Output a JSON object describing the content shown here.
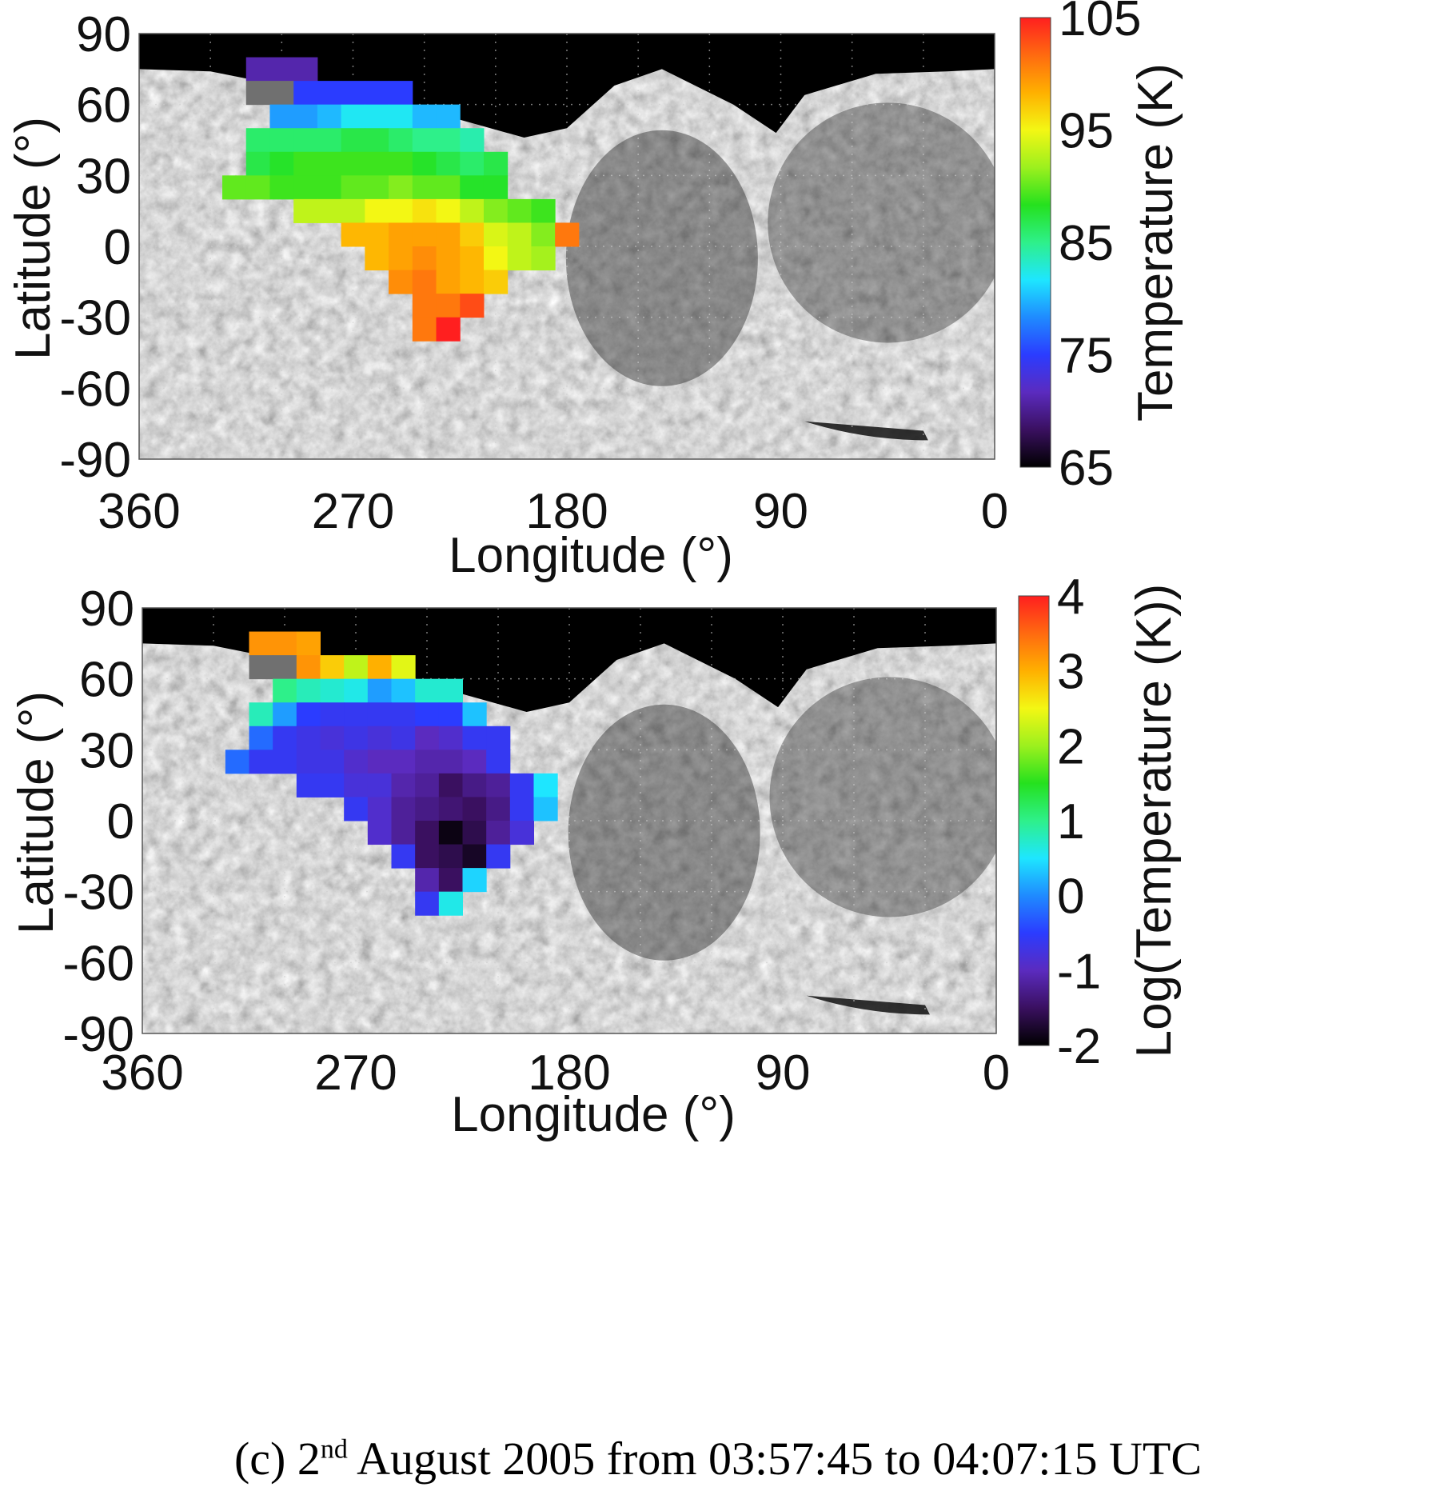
{
  "colorscale": [
    "#000000",
    "#3a1060",
    "#5b2bbf",
    "#2b3cff",
    "#1f8bff",
    "#1ee6ff",
    "#2ef08a",
    "#25e11e",
    "#9cf01e",
    "#f3f714",
    "#ffb000",
    "#ff6a10",
    "#ff1f1f"
  ],
  "chart_data": [
    {
      "type": "heatmap",
      "xlabel": "Longitude (°)",
      "ylabel": "Latitude (°)",
      "colorbar_label": "Temperature (K)",
      "x_ticks": [
        "360",
        "270",
        "180",
        "90",
        "0"
      ],
      "y_ticks": [
        "90",
        "60",
        "30",
        "0",
        "-30",
        "-60",
        "-90"
      ],
      "colorbar_ticks": [
        "105",
        "95",
        "85",
        "75",
        "65"
      ],
      "xlim": [
        360,
        0
      ],
      "ylim": [
        -90,
        90
      ],
      "clim": [
        65,
        105
      ],
      "cell_size_deg": [
        10,
        10
      ],
      "cells": [
        {
          "lon": 310,
          "lat": 75,
          "v": 71
        },
        {
          "lon": 300,
          "lat": 75,
          "v": 71
        },
        {
          "lon": 290,
          "lat": 75,
          "v": 71
        },
        {
          "lon": 310,
          "lat": 65,
          "nodata": true
        },
        {
          "lon": 300,
          "lat": 65,
          "nodata": true
        },
        {
          "lon": 290,
          "lat": 65,
          "v": 75
        },
        {
          "lon": 280,
          "lat": 65,
          "v": 75
        },
        {
          "lon": 270,
          "lat": 65,
          "v": 75
        },
        {
          "lon": 260,
          "lat": 65,
          "v": 75
        },
        {
          "lon": 250,
          "lat": 65,
          "v": 75
        },
        {
          "lon": 300,
          "lat": 55,
          "v": 79
        },
        {
          "lon": 290,
          "lat": 55,
          "v": 79
        },
        {
          "lon": 280,
          "lat": 55,
          "v": 80
        },
        {
          "lon": 270,
          "lat": 55,
          "v": 82
        },
        {
          "lon": 260,
          "lat": 55,
          "v": 82
        },
        {
          "lon": 250,
          "lat": 55,
          "v": 82
        },
        {
          "lon": 240,
          "lat": 55,
          "v": 80
        },
        {
          "lon": 230,
          "lat": 55,
          "v": 80
        },
        {
          "lon": 310,
          "lat": 45,
          "v": 86
        },
        {
          "lon": 300,
          "lat": 45,
          "v": 86
        },
        {
          "lon": 290,
          "lat": 45,
          "v": 86
        },
        {
          "lon": 280,
          "lat": 45,
          "v": 86
        },
        {
          "lon": 270,
          "lat": 45,
          "v": 87
        },
        {
          "lon": 260,
          "lat": 45,
          "v": 87
        },
        {
          "lon": 250,
          "lat": 45,
          "v": 86
        },
        {
          "lon": 240,
          "lat": 45,
          "v": 85
        },
        {
          "lon": 230,
          "lat": 45,
          "v": 85
        },
        {
          "lon": 220,
          "lat": 45,
          "v": 84
        },
        {
          "lon": 310,
          "lat": 35,
          "v": 87
        },
        {
          "lon": 300,
          "lat": 35,
          "v": 88
        },
        {
          "lon": 290,
          "lat": 35,
          "v": 89
        },
        {
          "lon": 280,
          "lat": 35,
          "v": 89
        },
        {
          "lon": 270,
          "lat": 35,
          "v": 89
        },
        {
          "lon": 260,
          "lat": 35,
          "v": 89
        },
        {
          "lon": 250,
          "lat": 35,
          "v": 89
        },
        {
          "lon": 240,
          "lat": 35,
          "v": 88
        },
        {
          "lon": 230,
          "lat": 35,
          "v": 87
        },
        {
          "lon": 220,
          "lat": 35,
          "v": 86
        },
        {
          "lon": 210,
          "lat": 35,
          "v": 87
        },
        {
          "lon": 320,
          "lat": 25,
          "v": 90
        },
        {
          "lon": 310,
          "lat": 25,
          "v": 90
        },
        {
          "lon": 300,
          "lat": 25,
          "v": 89
        },
        {
          "lon": 290,
          "lat": 25,
          "v": 89
        },
        {
          "lon": 280,
          "lat": 25,
          "v": 89
        },
        {
          "lon": 270,
          "lat": 25,
          "v": 90
        },
        {
          "lon": 260,
          "lat": 25,
          "v": 90
        },
        {
          "lon": 250,
          "lat": 25,
          "v": 91
        },
        {
          "lon": 240,
          "lat": 25,
          "v": 90
        },
        {
          "lon": 230,
          "lat": 25,
          "v": 90
        },
        {
          "lon": 220,
          "lat": 25,
          "v": 88
        },
        {
          "lon": 210,
          "lat": 25,
          "v": 88
        },
        {
          "lon": 290,
          "lat": 15,
          "v": 93
        },
        {
          "lon": 280,
          "lat": 15,
          "v": 93
        },
        {
          "lon": 270,
          "lat": 15,
          "v": 93
        },
        {
          "lon": 260,
          "lat": 15,
          "v": 95
        },
        {
          "lon": 250,
          "lat": 15,
          "v": 95
        },
        {
          "lon": 240,
          "lat": 15,
          "v": 96
        },
        {
          "lon": 230,
          "lat": 15,
          "v": 95
        },
        {
          "lon": 220,
          "lat": 15,
          "v": 93
        },
        {
          "lon": 210,
          "lat": 15,
          "v": 91
        },
        {
          "lon": 200,
          "lat": 15,
          "v": 90
        },
        {
          "lon": 190,
          "lat": 15,
          "v": 89
        },
        {
          "lon": 270,
          "lat": 5,
          "v": 98
        },
        {
          "lon": 260,
          "lat": 5,
          "v": 98
        },
        {
          "lon": 250,
          "lat": 5,
          "v": 99
        },
        {
          "lon": 240,
          "lat": 5,
          "v": 99
        },
        {
          "lon": 230,
          "lat": 5,
          "v": 99
        },
        {
          "lon": 220,
          "lat": 5,
          "v": 97
        },
        {
          "lon": 210,
          "lat": 5,
          "v": 94
        },
        {
          "lon": 200,
          "lat": 5,
          "v": 93
        },
        {
          "lon": 190,
          "lat": 5,
          "v": 91
        },
        {
          "lon": 180,
          "lat": 5,
          "v": 101
        },
        {
          "lon": 260,
          "lat": -5,
          "v": 98
        },
        {
          "lon": 250,
          "lat": -5,
          "v": 99
        },
        {
          "lon": 240,
          "lat": -5,
          "v": 100
        },
        {
          "lon": 230,
          "lat": -5,
          "v": 99
        },
        {
          "lon": 220,
          "lat": -5,
          "v": 98
        },
        {
          "lon": 210,
          "lat": -5,
          "v": 95
        },
        {
          "lon": 200,
          "lat": -5,
          "v": 93
        },
        {
          "lon": 190,
          "lat": -5,
          "v": 92
        },
        {
          "lon": 250,
          "lat": -15,
          "v": 100
        },
        {
          "lon": 240,
          "lat": -15,
          "v": 101
        },
        {
          "lon": 230,
          "lat": -15,
          "v": 99
        },
        {
          "lon": 220,
          "lat": -15,
          "v": 98
        },
        {
          "lon": 210,
          "lat": -15,
          "v": 97
        },
        {
          "lon": 240,
          "lat": -25,
          "v": 101
        },
        {
          "lon": 230,
          "lat": -25,
          "v": 101
        },
        {
          "lon": 220,
          "lat": -25,
          "v": 103
        },
        {
          "lon": 240,
          "lat": -35,
          "v": 101
        },
        {
          "lon": 230,
          "lat": -35,
          "v": 105
        }
      ]
    },
    {
      "type": "heatmap",
      "xlabel": "Longitude (°)",
      "ylabel": "Latitude (°)",
      "colorbar_label": "Log(Temperature (K))",
      "x_ticks": [
        "360",
        "270",
        "180",
        "90",
        "0"
      ],
      "y_ticks": [
        "90",
        "60",
        "30",
        "0",
        "-30",
        "-60",
        "-90"
      ],
      "colorbar_ticks": [
        "4",
        "3",
        "2",
        "1",
        "0",
        "-1",
        "-2"
      ],
      "xlim": [
        360,
        0
      ],
      "ylim": [
        -90,
        90
      ],
      "clim": [
        -2,
        4
      ],
      "cell_size_deg": [
        10,
        10
      ],
      "cells": [
        {
          "lon": 310,
          "lat": 75,
          "v": 3.2
        },
        {
          "lon": 300,
          "lat": 75,
          "v": 3.2
        },
        {
          "lon": 290,
          "lat": 75,
          "v": 3.1
        },
        {
          "lon": 310,
          "lat": 65,
          "nodata": true
        },
        {
          "lon": 300,
          "lat": 65,
          "nodata": true
        },
        {
          "lon": 290,
          "lat": 65,
          "v": 3.2
        },
        {
          "lon": 280,
          "lat": 65,
          "v": 2.8
        },
        {
          "lon": 270,
          "lat": 65,
          "v": 2.2
        },
        {
          "lon": 260,
          "lat": 65,
          "v": 3.0
        },
        {
          "lon": 250,
          "lat": 65,
          "v": 2.4
        },
        {
          "lon": 300,
          "lat": 55,
          "v": 1.0
        },
        {
          "lon": 290,
          "lat": 55,
          "v": 0.8
        },
        {
          "lon": 280,
          "lat": 55,
          "v": 0.7
        },
        {
          "lon": 270,
          "lat": 55,
          "v": 0.6
        },
        {
          "lon": 260,
          "lat": 55,
          "v": 0.1
        },
        {
          "lon": 250,
          "lat": 55,
          "v": 0.3
        },
        {
          "lon": 240,
          "lat": 55,
          "v": 0.7
        },
        {
          "lon": 230,
          "lat": 55,
          "v": 0.7
        },
        {
          "lon": 310,
          "lat": 45,
          "v": 0.8
        },
        {
          "lon": 300,
          "lat": 45,
          "v": 0.1
        },
        {
          "lon": 290,
          "lat": 45,
          "v": -0.5
        },
        {
          "lon": 280,
          "lat": 45,
          "v": -0.6
        },
        {
          "lon": 270,
          "lat": 45,
          "v": -0.6
        },
        {
          "lon": 260,
          "lat": 45,
          "v": -0.6
        },
        {
          "lon": 250,
          "lat": 45,
          "v": -0.6
        },
        {
          "lon": 240,
          "lat": 45,
          "v": -0.5
        },
        {
          "lon": 230,
          "lat": 45,
          "v": -0.5
        },
        {
          "lon": 220,
          "lat": 45,
          "v": 0.3
        },
        {
          "lon": 310,
          "lat": 35,
          "v": -0.2
        },
        {
          "lon": 300,
          "lat": 35,
          "v": -0.6
        },
        {
          "lon": 290,
          "lat": 35,
          "v": -0.7
        },
        {
          "lon": 280,
          "lat": 35,
          "v": -0.8
        },
        {
          "lon": 270,
          "lat": 35,
          "v": -0.7
        },
        {
          "lon": 260,
          "lat": 35,
          "v": -0.8
        },
        {
          "lon": 250,
          "lat": 35,
          "v": -0.7
        },
        {
          "lon": 240,
          "lat": 35,
          "v": -1.0
        },
        {
          "lon": 230,
          "lat": 35,
          "v": -0.9
        },
        {
          "lon": 220,
          "lat": 35,
          "v": -0.6
        },
        {
          "lon": 210,
          "lat": 35,
          "v": -0.6
        },
        {
          "lon": 320,
          "lat": 25,
          "v": -0.2
        },
        {
          "lon": 310,
          "lat": 25,
          "v": -0.6
        },
        {
          "lon": 300,
          "lat": 25,
          "v": -0.6
        },
        {
          "lon": 290,
          "lat": 25,
          "v": -0.7
        },
        {
          "lon": 280,
          "lat": 25,
          "v": -0.7
        },
        {
          "lon": 270,
          "lat": 25,
          "v": -0.9
        },
        {
          "lon": 260,
          "lat": 25,
          "v": -1.0
        },
        {
          "lon": 250,
          "lat": 25,
          "v": -1.0
        },
        {
          "lon": 240,
          "lat": 25,
          "v": -1.1
        },
        {
          "lon": 230,
          "lat": 25,
          "v": -1.1
        },
        {
          "lon": 220,
          "lat": 25,
          "v": -1.0
        },
        {
          "lon": 210,
          "lat": 25,
          "v": -0.6
        },
        {
          "lon": 290,
          "lat": 15,
          "v": -0.6
        },
        {
          "lon": 280,
          "lat": 15,
          "v": -0.6
        },
        {
          "lon": 270,
          "lat": 15,
          "v": -0.8
        },
        {
          "lon": 260,
          "lat": 15,
          "v": -0.8
        },
        {
          "lon": 250,
          "lat": 15,
          "v": -1.1
        },
        {
          "lon": 240,
          "lat": 15,
          "v": -1.2
        },
        {
          "lon": 230,
          "lat": 15,
          "v": -1.5
        },
        {
          "lon": 220,
          "lat": 15,
          "v": -1.3
        },
        {
          "lon": 210,
          "lat": 15,
          "v": -1.2
        },
        {
          "lon": 200,
          "lat": 15,
          "v": -0.6
        },
        {
          "lon": 190,
          "lat": 15,
          "v": 0.5
        },
        {
          "lon": 270,
          "lat": 5,
          "v": -0.6
        },
        {
          "lon": 260,
          "lat": 5,
          "v": -0.9
        },
        {
          "lon": 250,
          "lat": 5,
          "v": -1.2
        },
        {
          "lon": 240,
          "lat": 5,
          "v": -1.3
        },
        {
          "lon": 230,
          "lat": 5,
          "v": -1.4
        },
        {
          "lon": 220,
          "lat": 5,
          "v": -1.5
        },
        {
          "lon": 210,
          "lat": 5,
          "v": -1.3
        },
        {
          "lon": 200,
          "lat": 5,
          "v": -0.6
        },
        {
          "lon": 190,
          "lat": 5,
          "v": 0.3
        },
        {
          "lon": 260,
          "lat": -5,
          "v": -0.9
        },
        {
          "lon": 250,
          "lat": -5,
          "v": -1.2
        },
        {
          "lon": 240,
          "lat": -5,
          "v": -1.5
        },
        {
          "lon": 230,
          "lat": -5,
          "v": -1.9
        },
        {
          "lon": 220,
          "lat": -5,
          "v": -1.6
        },
        {
          "lon": 210,
          "lat": -5,
          "v": -1.2
        },
        {
          "lon": 200,
          "lat": -5,
          "v": -0.8
        },
        {
          "lon": 250,
          "lat": -15,
          "v": -0.6
        },
        {
          "lon": 240,
          "lat": -15,
          "v": -1.5
        },
        {
          "lon": 230,
          "lat": -15,
          "v": -1.6
        },
        {
          "lon": 220,
          "lat": -15,
          "v": -1.8
        },
        {
          "lon": 210,
          "lat": -15,
          "v": -0.6
        },
        {
          "lon": 240,
          "lat": -25,
          "v": -1.1
        },
        {
          "lon": 230,
          "lat": -25,
          "v": -1.5
        },
        {
          "lon": 220,
          "lat": -25,
          "v": 0.4
        },
        {
          "lon": 240,
          "lat": -35,
          "v": -0.6
        },
        {
          "lon": 230,
          "lat": -35,
          "v": 0.6
        }
      ]
    }
  ],
  "caption": {
    "prefix": "(c) 2",
    "superscript": "nd",
    "suffix": " August 2005 from 03:57:45 to 04:07:15 UTC"
  }
}
